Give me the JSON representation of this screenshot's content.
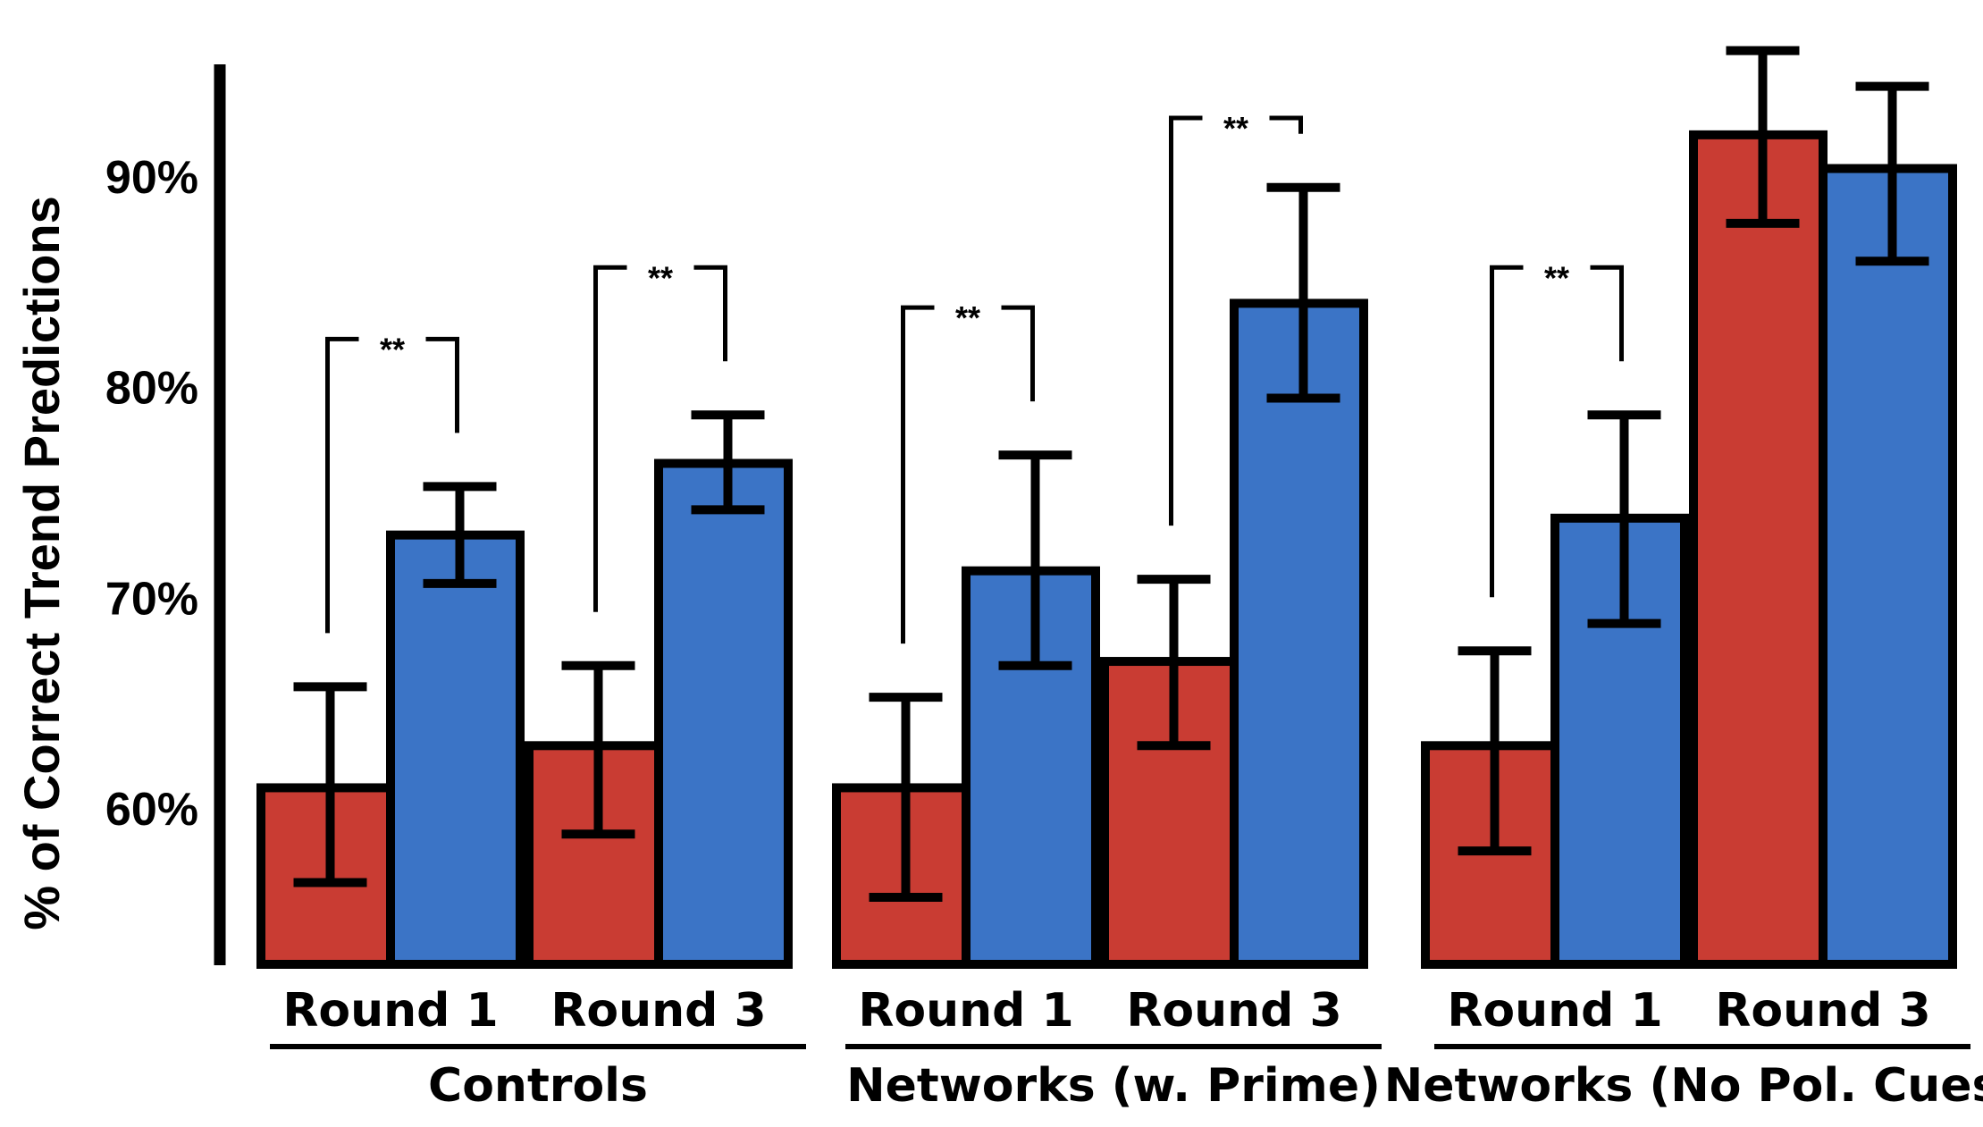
{
  "chart_data": {
    "type": "bar",
    "title": "",
    "xlabel": "",
    "ylabel": "% of Correct Trend Predictions",
    "ylim": [
      54,
      96
    ],
    "yticks": [
      {
        "value": 60,
        "label": "60%"
      },
      {
        "value": 70,
        "label": "70%"
      },
      {
        "value": 80,
        "label": "80%"
      },
      {
        "value": 90,
        "label": "90%"
      }
    ],
    "grid": false,
    "legend": "none",
    "colors": {
      "red": "#c93c33",
      "blue": "#3b74c6",
      "outline": "#000000"
    },
    "groups": [
      {
        "label": "Controls",
        "clusters": [
          {
            "label": "Round 1",
            "red": {
              "value": 61.0,
              "err": [
                56.5,
                65.8
              ]
            },
            "blue": {
              "value": 73.0,
              "err": [
                70.7,
                75.3
              ]
            },
            "sig": "**"
          },
          {
            "label": "Round 3",
            "red": {
              "value": 63.0,
              "err": [
                58.8,
                66.8
              ]
            },
            "blue": {
              "value": 76.4,
              "err": [
                74.2,
                78.7
              ]
            },
            "sig": "**"
          }
        ]
      },
      {
        "label": "Networks (w. Prime)",
        "clusters": [
          {
            "label": "Round 1",
            "red": {
              "value": 61.0,
              "err": [
                55.8,
                65.3
              ]
            },
            "blue": {
              "value": 71.3,
              "err": [
                66.8,
                76.8
              ]
            },
            "sig": "**"
          },
          {
            "label": "Round 3",
            "red": {
              "value": 67.0,
              "err": [
                63.0,
                70.9
              ]
            },
            "blue": {
              "value": 84.0,
              "err": [
                79.5,
                89.5
              ]
            },
            "sig": "**"
          }
        ]
      },
      {
        "label": "Networks (No Pol. Cues)",
        "clusters": [
          {
            "label": "Round 1",
            "red": {
              "value": 63.0,
              "err": [
                58.0,
                67.5
              ]
            },
            "blue": {
              "value": 73.8,
              "err": [
                68.8,
                78.7
              ]
            },
            "sig": "**"
          },
          {
            "label": "Round 3",
            "red": {
              "value": 92.0,
              "err": [
                87.8,
                96.0
              ]
            },
            "blue": {
              "value": 90.4,
              "err": [
                86.0,
                94.3
              ]
            },
            "sig": ""
          }
        ]
      }
    ]
  }
}
